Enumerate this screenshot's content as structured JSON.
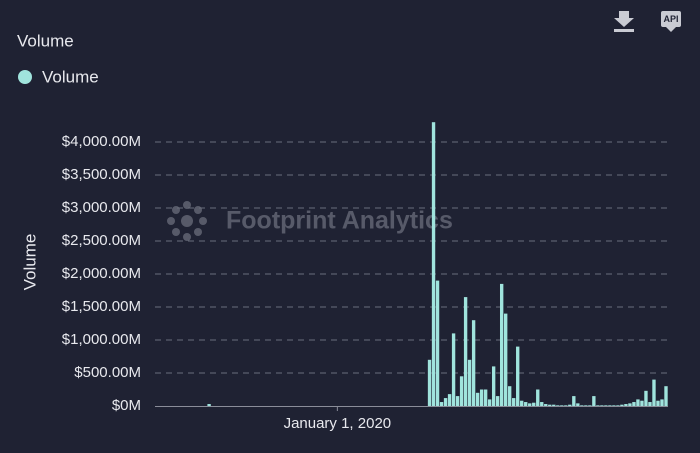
{
  "chart_data": {
    "type": "bar",
    "title": "Volume",
    "y_label": "Volume",
    "watermark": "Footprint Analytics",
    "api_icon": "API",
    "series": [
      {
        "name": "Volume",
        "color": "#a0e4dd",
        "values": [
          0,
          0,
          0,
          0,
          0,
          0,
          0,
          0,
          0,
          0,
          0,
          0,
          0,
          30,
          0,
          0,
          0,
          0,
          0,
          0,
          0,
          0,
          0,
          0,
          0,
          0,
          0,
          0,
          0,
          0,
          0,
          0,
          0,
          0,
          0,
          0,
          0,
          0,
          0,
          0,
          0,
          0,
          0,
          0,
          0,
          0,
          0,
          0,
          0,
          0,
          0,
          0,
          0,
          0,
          0,
          0,
          0,
          0,
          0,
          0,
          0,
          0,
          0,
          0,
          0,
          0,
          0,
          0,
          700,
          4300,
          1900,
          60,
          120,
          180,
          1100,
          150,
          450,
          1650,
          700,
          1300,
          200,
          250,
          250,
          100,
          600,
          150,
          1850,
          1400,
          300,
          120,
          900,
          80,
          60,
          40,
          50,
          250,
          60,
          30,
          20,
          20,
          10,
          10,
          10,
          20,
          150,
          40,
          10,
          10,
          10,
          150,
          10,
          10,
          10,
          10,
          10,
          10,
          20,
          30,
          40,
          60,
          100,
          80,
          230,
          60,
          400,
          80,
          100,
          300
        ]
      }
    ],
    "categories": [
      null,
      null,
      null,
      null,
      null,
      null,
      null,
      null,
      null,
      null,
      null,
      null,
      null,
      null,
      null,
      null,
      null,
      null,
      null,
      null,
      null,
      null,
      null,
      null,
      null,
      null,
      null,
      null,
      null,
      null,
      null,
      null,
      null,
      null,
      null,
      null,
      null,
      null,
      null,
      null,
      null,
      null,
      null,
      null,
      null,
      "January 1, 2020",
      null,
      null,
      null,
      null,
      null,
      null,
      null,
      null,
      null,
      null,
      null,
      null,
      null,
      null,
      null,
      null,
      null,
      null,
      null,
      null,
      null,
      null,
      null,
      null,
      null,
      null,
      null,
      null,
      null,
      null,
      null,
      null,
      null,
      null,
      null,
      null,
      null,
      null,
      null,
      null,
      null,
      null,
      null,
      null,
      null,
      null,
      null,
      null,
      null,
      null,
      null,
      null,
      null,
      null,
      null,
      null,
      null,
      null,
      null,
      null,
      null,
      null,
      null,
      null,
      null,
      null,
      null,
      null,
      null,
      null,
      null,
      null,
      null,
      null,
      null,
      null,
      null,
      null,
      null,
      null,
      null,
      null
    ],
    "ylim": [
      0,
      4350
    ],
    "yticks": [
      {
        "value": 0,
        "label": "$0M"
      },
      {
        "value": 500,
        "label": "$500.00M"
      },
      {
        "value": 1000,
        "label": "$1,000.00M"
      },
      {
        "value": 1500,
        "label": "$1,500.00M"
      },
      {
        "value": 2000,
        "label": "$2,000.00M"
      },
      {
        "value": 2500,
        "label": "$2,500.00M"
      },
      {
        "value": 3000,
        "label": "$3,000.00M"
      },
      {
        "value": 3500,
        "label": "$3,500.00M"
      },
      {
        "value": 4000,
        "label": "$4,000.00M"
      }
    ],
    "grid": true
  }
}
